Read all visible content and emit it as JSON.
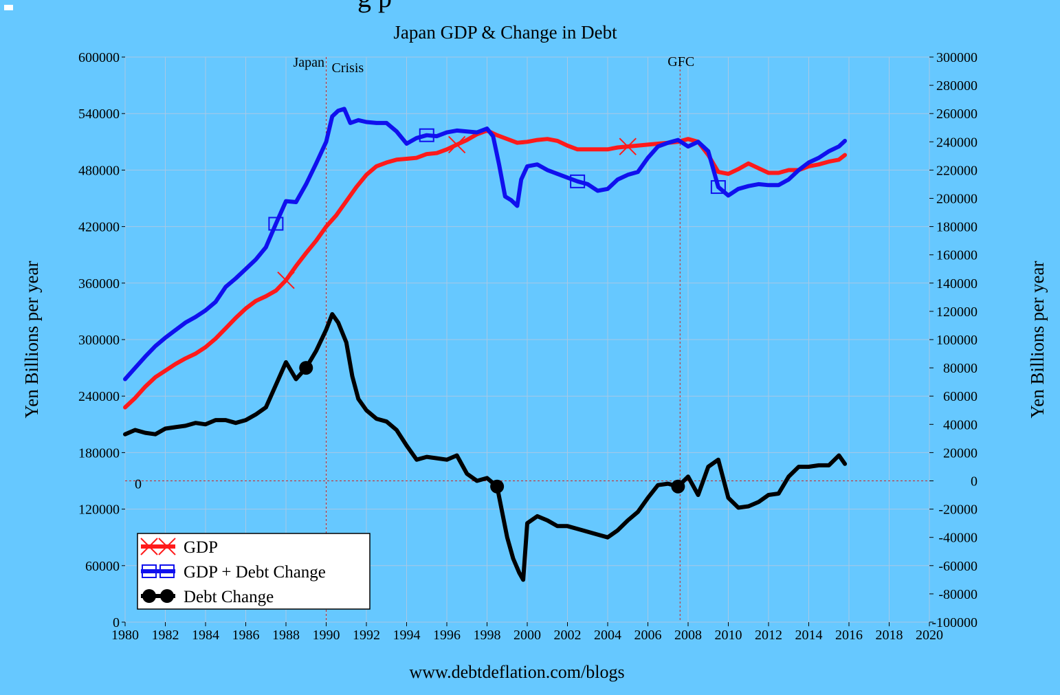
{
  "colors": {
    "background": "#66c8ff",
    "gdp": "#ff1a1a",
    "gdp_plus_debt": "#1010ee",
    "debt_change": "#000000",
    "grid": "#a8c8e6",
    "reference": "#cc2222"
  },
  "chart_data": {
    "type": "line",
    "title": "Japan GDP & Change in Debt",
    "top_cropped_title": "g  p",
    "footer": "www.debtdeflation.com/blogs",
    "xlabel": "",
    "ylabel_left": "Yen  Billions per year",
    "ylabel_right": "Yen  Billions per year",
    "xlim": [
      1980,
      2020
    ],
    "ylim_left": [
      0,
      600000
    ],
    "ylim_right": [
      -100000,
      300000
    ],
    "x_ticks": [
      "1980",
      "1982",
      "1984",
      "1986",
      "1988",
      "1990",
      "1992",
      "1994",
      "1996",
      "1998",
      "2000",
      "2002",
      "2004",
      "2006",
      "2008",
      "2010",
      "2012",
      "2014",
      "2016",
      "2018",
      "2020"
    ],
    "y_ticks_left": [
      "0",
      "60000",
      "120000",
      "180000",
      "240000",
      "300000",
      "360000",
      "420000",
      "480000",
      "540000",
      "600000"
    ],
    "y_ticks_right": [
      "-100000",
      "-80000",
      "-60000",
      "-40000",
      "-20000",
      "0",
      "20000",
      "40000",
      "60000",
      "80000",
      "100000",
      "120000",
      "140000",
      "160000",
      "180000",
      "200000",
      "220000",
      "240000",
      "260000",
      "280000",
      "300000"
    ],
    "zero_line_label": "0",
    "annotations": [
      {
        "label": "Japan",
        "x": 1990.0
      },
      {
        "label": "Crisis",
        "x": 1990.0
      },
      {
        "label": "GFC",
        "x": 2007.6
      }
    ],
    "legend": [
      "GDP",
      "GDP + Debt Change",
      "Debt Change"
    ],
    "legend_position": "bottom-left",
    "series": [
      {
        "name": "GDP",
        "axis": "left",
        "marker": "x",
        "x": [
          1980,
          1980.5,
          1981,
          1981.5,
          1982,
          1982.5,
          1983,
          1983.5,
          1984,
          1984.5,
          1985,
          1985.5,
          1986,
          1986.5,
          1987,
          1987.5,
          1988,
          1988.5,
          1989,
          1989.5,
          1990,
          1990.5,
          1991,
          1991.5,
          1992,
          1992.5,
          1993,
          1993.5,
          1994,
          1994.5,
          1995,
          1995.5,
          1996,
          1996.5,
          1997,
          1997.5,
          1998,
          1998.5,
          1999,
          1999.5,
          2000,
          2000.5,
          2001,
          2001.5,
          2002,
          2002.5,
          2003,
          2003.5,
          2004,
          2004.5,
          2005,
          2005.5,
          2006,
          2006.5,
          2007,
          2007.5,
          2008,
          2008.5,
          2009,
          2009.5,
          2010,
          2010.5,
          2011,
          2011.5,
          2012,
          2012.5,
          2013,
          2013.5,
          2014,
          2014.5,
          2015,
          2015.5,
          2015.8
        ],
        "values": [
          228000,
          238000,
          250000,
          260000,
          267000,
          274000,
          280000,
          285000,
          292000,
          301000,
          312000,
          323000,
          333000,
          341000,
          346000,
          352000,
          363000,
          378000,
          392000,
          405000,
          420000,
          432000,
          447000,
          462000,
          475000,
          484000,
          488000,
          491000,
          492000,
          493000,
          497000,
          498000,
          502000,
          507000,
          512000,
          518000,
          522000,
          517000,
          513000,
          509000,
          510000,
          512000,
          513000,
          511000,
          506000,
          502000,
          502000,
          502000,
          502000,
          504000,
          505000,
          506000,
          507000,
          508000,
          509000,
          510000,
          513000,
          510000,
          496000,
          478000,
          476000,
          481000,
          487000,
          482000,
          477000,
          477000,
          480000,
          480000,
          484000,
          486000,
          489000,
          491000,
          496000
        ]
      },
      {
        "name": "GDP + Debt Change",
        "axis": "left",
        "marker": "square",
        "x": [
          1980,
          1980.5,
          1981,
          1981.5,
          1982,
          1982.5,
          1983,
          1983.5,
          1984,
          1984.5,
          1985,
          1985.5,
          1986,
          1986.5,
          1987,
          1987.5,
          1988,
          1988.5,
          1989,
          1989.5,
          1990,
          1990.3,
          1990.6,
          1990.9,
          1991.2,
          1991.6,
          1992,
          1992.5,
          1993,
          1993.5,
          1994,
          1994.5,
          1995,
          1995.5,
          1996,
          1996.5,
          1997,
          1997.5,
          1998,
          1998.3,
          1998.6,
          1998.9,
          1999.2,
          1999.5,
          1999.7,
          2000,
          2000.5,
          2001,
          2001.5,
          2002,
          2002.5,
          2003,
          2003.5,
          2004,
          2004.5,
          2005,
          2005.5,
          2006,
          2006.5,
          2007,
          2007.5,
          2008,
          2008.5,
          2009,
          2009.5,
          2010,
          2010.5,
          2011,
          2011.5,
          2012,
          2012.5,
          2013,
          2013.5,
          2014,
          2014.5,
          2015,
          2015.5,
          2015.8
        ],
        "values": [
          258000,
          270000,
          282000,
          293000,
          302000,
          310000,
          318000,
          324000,
          331000,
          340000,
          356000,
          365000,
          375000,
          385000,
          398000,
          423000,
          447000,
          446000,
          465000,
          487000,
          510000,
          537000,
          543000,
          545000,
          530000,
          533000,
          531000,
          530000,
          530000,
          521000,
          508000,
          514000,
          517000,
          516000,
          520000,
          522000,
          521000,
          520000,
          524000,
          516000,
          486000,
          452000,
          448000,
          442000,
          470000,
          484000,
          486000,
          480000,
          476000,
          472000,
          468000,
          465000,
          458000,
          460000,
          470000,
          475000,
          478000,
          493000,
          505000,
          509000,
          512000,
          505000,
          510000,
          500000,
          462000,
          453000,
          460000,
          463000,
          465000,
          464000,
          464000,
          470000,
          480000,
          488000,
          493000,
          500000,
          505000,
          511000
        ]
      },
      {
        "name": "Debt Change",
        "axis": "right",
        "marker": "circle",
        "x": [
          1980,
          1980.5,
          1981,
          1981.5,
          1982,
          1982.5,
          1983,
          1983.5,
          1984,
          1984.5,
          1985,
          1985.5,
          1986,
          1986.5,
          1987,
          1987.5,
          1988,
          1988.5,
          1989,
          1989.5,
          1990,
          1990.3,
          1990.6,
          1991,
          1991.3,
          1991.6,
          1992,
          1992.5,
          1993,
          1993.5,
          1994,
          1994.5,
          1995,
          1995.5,
          1996,
          1996.5,
          1997,
          1997.5,
          1998,
          1998.5,
          1999,
          1999.3,
          1999.6,
          1999.8,
          2000,
          2000.5,
          2001,
          2001.5,
          2002,
          2002.5,
          2003,
          2003.5,
          2004,
          2004.5,
          2005,
          2005.5,
          2006,
          2006.5,
          2007,
          2007.5,
          2008,
          2008.5,
          2009,
          2009.5,
          2010,
          2010.5,
          2011,
          2011.5,
          2012,
          2012.5,
          2013,
          2013.5,
          2014,
          2014.5,
          2015,
          2015.5,
          2015.8
        ],
        "values": [
          33000,
          36000,
          34000,
          33000,
          37000,
          38000,
          39000,
          41000,
          40000,
          43000,
          43000,
          41000,
          43000,
          47000,
          52000,
          68000,
          84000,
          72000,
          80000,
          92000,
          107000,
          118000,
          112000,
          98000,
          74000,
          58000,
          50000,
          44000,
          42000,
          36000,
          25000,
          15000,
          17000,
          16000,
          15000,
          18000,
          5000,
          0,
          2000,
          -4000,
          -40000,
          -55000,
          -65000,
          -70000,
          -30000,
          -25000,
          -28000,
          -32000,
          -32000,
          -34000,
          -36000,
          -38000,
          -40000,
          -35000,
          -28000,
          -22000,
          -12000,
          -3000,
          -2000,
          -4000,
          3000,
          -10000,
          10000,
          15000,
          -12000,
          -19000,
          -18000,
          -15000,
          -10000,
          -9000,
          3000,
          10000,
          10000,
          11000,
          11000,
          18000,
          12000
        ]
      }
    ]
  }
}
